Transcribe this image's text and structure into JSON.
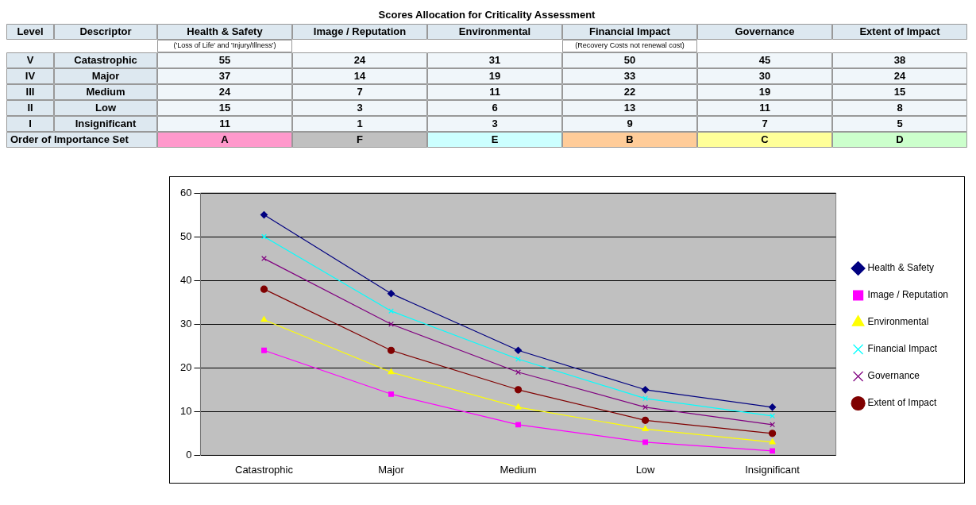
{
  "chart_data": [
    {
      "type": "other",
      "title": "Scores Allocation for Criticality Assessment",
      "categories": [
        "Health & Safety",
        "Image / Reputation",
        "Environmental",
        "Financial Impact",
        "Governance",
        "Extent of Impact"
      ],
      "y_categories": [
        "Catastrophic",
        "Major",
        "Medium",
        "Low",
        "Insignificant"
      ],
      "annotations": [
        "Level",
        "Descriptor",
        "V",
        "IV",
        "III",
        "II",
        "I",
        "Order of Importance Set",
        "A",
        "F",
        "E",
        "B",
        "C",
        "D",
        "('Loss of Life' and 'Injury/Illness')",
        "(Recovery Costs not renewal cost)",
        "55",
        "24",
        "31",
        "50",
        "45",
        "38",
        "37",
        "14",
        "19",
        "33",
        "30",
        "24",
        "24",
        "7",
        "11",
        "22",
        "19",
        "15",
        "15",
        "3",
        "6",
        "13",
        "11",
        "8",
        "11",
        "1",
        "3",
        "9",
        "7",
        "5"
      ]
    },
    {
      "type": "line",
      "categories": [
        "Catastrophic",
        "Major",
        "Medium",
        "Low",
        "Insignificant"
      ],
      "series": [
        {
          "name": "Health & Safety",
          "color": "#000080",
          "marker": "diamond",
          "values": [
            55,
            37,
            24,
            15,
            11
          ]
        },
        {
          "name": "Image / Reputation",
          "color": "#ff00ff",
          "marker": "square",
          "values": [
            24,
            14,
            7,
            3,
            1
          ]
        },
        {
          "name": "Environmental",
          "color": "#ffff00",
          "marker": "triangle",
          "values": [
            31,
            19,
            11,
            6,
            3
          ]
        },
        {
          "name": "Financial Impact",
          "color": "#00ffff",
          "marker": "cross",
          "values": [
            50,
            33,
            22,
            13,
            9
          ]
        },
        {
          "name": "Governance",
          "color": "#800080",
          "marker": "cross",
          "values": [
            45,
            30,
            19,
            11,
            7
          ]
        },
        {
          "name": "Extent of Impact",
          "color": "#800000",
          "marker": "circle",
          "values": [
            38,
            24,
            15,
            8,
            5
          ]
        }
      ],
      "ylim": [
        0,
        60
      ],
      "yticks": [
        0,
        10,
        20,
        30,
        40,
        50,
        60
      ],
      "grid": "y",
      "legend": "right"
    }
  ]
}
